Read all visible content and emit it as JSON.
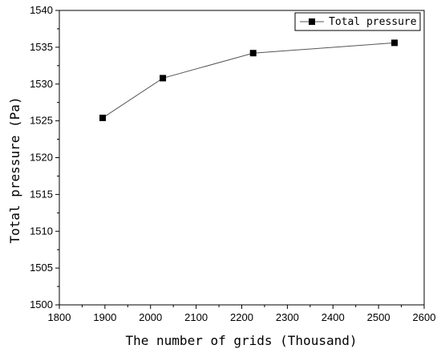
{
  "chart_data": {
    "type": "line",
    "title": "",
    "xlabel": "The number of grids (Thousand)",
    "ylabel": "Total pressure (Pa)",
    "xlim": [
      1800,
      2600
    ],
    "ylim": [
      1500,
      1540
    ],
    "x_ticks": [
      1800,
      1900,
      2000,
      2100,
      2200,
      2300,
      2400,
      2500,
      2600
    ],
    "y_ticks": [
      1500,
      1505,
      1510,
      1515,
      1520,
      1525,
      1530,
      1535,
      1540
    ],
    "grid": false,
    "legend_position": "top-right",
    "series": [
      {
        "name": "Total pressure",
        "marker": "square",
        "color": "#000000",
        "line_color": "#555555",
        "x": [
          1895,
          2027,
          2225,
          2535
        ],
        "y": [
          1525.4,
          1530.8,
          1534.2,
          1535.6
        ]
      }
    ]
  }
}
